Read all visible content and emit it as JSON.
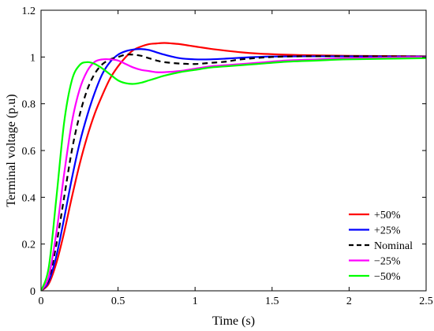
{
  "chart_data": {
    "type": "line",
    "title": "",
    "xlabel": "Time (s)",
    "ylabel": "Terminal voltage (p.u)",
    "xlim": [
      0,
      2.5
    ],
    "ylim": [
      0,
      1.2
    ],
    "xticks": [
      0,
      0.5,
      1,
      1.5,
      2,
      2.5
    ],
    "xtick_labels": [
      "0",
      "0.5",
      "1",
      "1.5",
      "2",
      "2.5"
    ],
    "yticks": [
      0,
      0.2,
      0.4,
      0.6,
      0.8,
      1,
      1.2
    ],
    "ytick_labels": [
      "0",
      "0.2",
      "0.4",
      "0.6",
      "0.8",
      "1",
      "1.2"
    ],
    "grid": false,
    "legend_position": "bottom-right",
    "series": [
      {
        "name": "+50%",
        "color": "#ff0000",
        "dash": "solid",
        "x": [
          0,
          0.05,
          0.1,
          0.15,
          0.2,
          0.25,
          0.3,
          0.35,
          0.4,
          0.45,
          0.5,
          0.55,
          0.6,
          0.65,
          0.7,
          0.75,
          0.8,
          0.85,
          0.9,
          0.95,
          1.0,
          1.1,
          1.2,
          1.3,
          1.4,
          1.5,
          1.7,
          2.0,
          2.5
        ],
        "y": [
          0,
          0.03,
          0.12,
          0.25,
          0.4,
          0.54,
          0.66,
          0.76,
          0.84,
          0.91,
          0.96,
          1.0,
          1.03,
          1.045,
          1.055,
          1.058,
          1.06,
          1.058,
          1.055,
          1.05,
          1.045,
          1.035,
          1.027,
          1.02,
          1.015,
          1.012,
          1.008,
          1.005,
          1.003
        ]
      },
      {
        "name": "+25%",
        "color": "#0000ff",
        "dash": "solid",
        "x": [
          0,
          0.05,
          0.1,
          0.15,
          0.2,
          0.25,
          0.3,
          0.35,
          0.4,
          0.45,
          0.5,
          0.55,
          0.6,
          0.65,
          0.7,
          0.75,
          0.8,
          0.9,
          1.0,
          1.1,
          1.2,
          1.3,
          1.4,
          1.5,
          1.7,
          2.0,
          2.5
        ],
        "y": [
          0,
          0.04,
          0.15,
          0.31,
          0.48,
          0.63,
          0.75,
          0.85,
          0.93,
          0.98,
          1.01,
          1.025,
          1.032,
          1.034,
          1.03,
          1.02,
          1.01,
          0.995,
          0.99,
          0.99,
          0.993,
          0.997,
          1.0,
          1.002,
          1.003,
          1.003,
          1.002
        ]
      },
      {
        "name": "Nominal",
        "color": "#000000",
        "dash": "dashed",
        "x": [
          0,
          0.05,
          0.1,
          0.15,
          0.2,
          0.25,
          0.3,
          0.35,
          0.4,
          0.45,
          0.5,
          0.55,
          0.6,
          0.65,
          0.7,
          0.75,
          0.8,
          0.9,
          1.0,
          1.1,
          1.2,
          1.3,
          1.5,
          1.7,
          2.0,
          2.5
        ],
        "y": [
          0,
          0.05,
          0.2,
          0.4,
          0.6,
          0.75,
          0.86,
          0.93,
          0.97,
          0.99,
          1.0,
          1.01,
          1.01,
          1.005,
          0.995,
          0.985,
          0.978,
          0.972,
          0.97,
          0.975,
          0.98,
          0.99,
          1.0,
          1.003,
          1.003,
          1.002
        ]
      },
      {
        "name": "−25%",
        "color": "#ff00ff",
        "dash": "solid",
        "x": [
          0,
          0.05,
          0.1,
          0.15,
          0.2,
          0.25,
          0.3,
          0.35,
          0.4,
          0.45,
          0.5,
          0.55,
          0.6,
          0.65,
          0.7,
          0.75,
          0.8,
          0.9,
          1.0,
          1.1,
          1.2,
          1.4,
          1.6,
          1.8,
          2.0,
          2.5
        ],
        "y": [
          0,
          0.06,
          0.25,
          0.5,
          0.72,
          0.86,
          0.94,
          0.98,
          0.99,
          0.99,
          0.985,
          0.97,
          0.955,
          0.945,
          0.94,
          0.935,
          0.935,
          0.94,
          0.95,
          0.96,
          0.965,
          0.975,
          0.985,
          0.99,
          0.995,
          1.0
        ]
      },
      {
        "name": "−50%",
        "color": "#00ff00",
        "dash": "solid",
        "x": [
          0,
          0.05,
          0.1,
          0.15,
          0.2,
          0.25,
          0.3,
          0.35,
          0.4,
          0.45,
          0.5,
          0.55,
          0.6,
          0.65,
          0.7,
          0.75,
          0.8,
          0.9,
          1.0,
          1.1,
          1.2,
          1.4,
          1.6,
          1.8,
          2.0,
          2.5
        ],
        "y": [
          0,
          0.1,
          0.4,
          0.72,
          0.9,
          0.965,
          0.978,
          0.97,
          0.95,
          0.925,
          0.9,
          0.888,
          0.885,
          0.89,
          0.9,
          0.91,
          0.92,
          0.935,
          0.945,
          0.955,
          0.96,
          0.97,
          0.98,
          0.985,
          0.99,
          0.995
        ]
      }
    ]
  }
}
